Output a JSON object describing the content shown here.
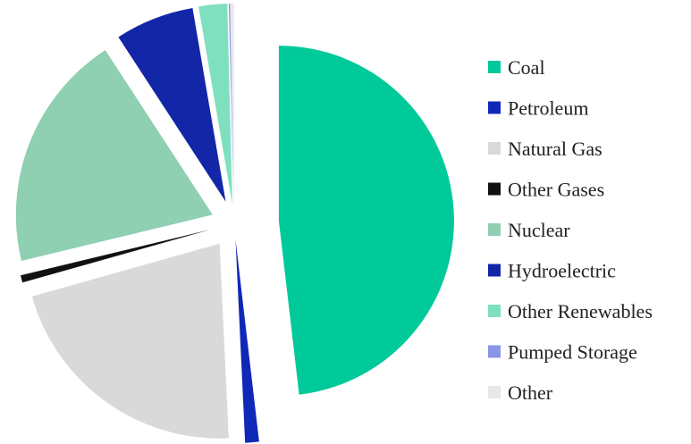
{
  "chart_data": {
    "type": "pie",
    "exploded": true,
    "legend_position": "right",
    "categories": [
      "Coal",
      "Petroleum",
      "Natural Gas",
      "Other Gases",
      "Nuclear",
      "Hydroelectric",
      "Other Renewables",
      "Pumped Storage",
      "Other"
    ],
    "values": [
      48.2,
      1.1,
      21.4,
      0.6,
      19.6,
      6.5,
      2.3,
      0.1,
      0.3
    ],
    "units": "percent",
    "colors": [
      "#00c99a",
      "#1028b8",
      "#d9d9d9",
      "#111111",
      "#8fcfb2",
      "#1326a8",
      "#7fe0bf",
      "#8a95e6",
      "#e8e8e8"
    ],
    "title": "",
    "xlabel": "",
    "ylabel": ""
  }
}
